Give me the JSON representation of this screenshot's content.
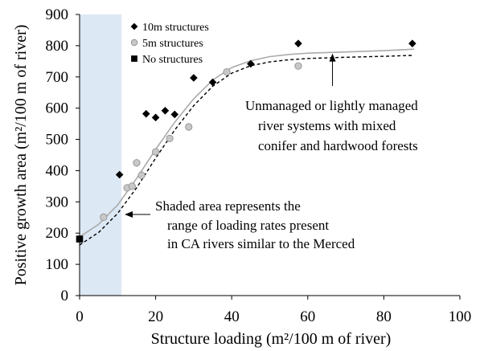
{
  "chart_data": {
    "type": "scatter",
    "xlabel": "Structure loading (m²/100 m of river)",
    "ylabel": "Positive growth area (m²/100 m of river)",
    "xlim": [
      0,
      100
    ],
    "ylim": [
      0,
      900
    ],
    "xticks": [
      "0",
      "20",
      "40",
      "60",
      "80",
      "100"
    ],
    "yticks": [
      "0",
      "100",
      "200",
      "300",
      "400",
      "500",
      "600",
      "700",
      "800",
      "900"
    ],
    "shaded_region": {
      "x": [
        0,
        11
      ],
      "color": "#dde8f5"
    },
    "legend_position": "top-left",
    "series": [
      {
        "name": "10m structures",
        "marker": "diamond",
        "color": "#000000",
        "points": [
          [
            10.5,
            387
          ],
          [
            17.5,
            582
          ],
          [
            20,
            570
          ],
          [
            22.5,
            592
          ],
          [
            25,
            580
          ],
          [
            30,
            697
          ],
          [
            35,
            683
          ],
          [
            45,
            742
          ],
          [
            57.5,
            807
          ],
          [
            87.5,
            807
          ]
        ]
      },
      {
        "name": "5m structures",
        "marker": "circle",
        "color": "#c8c8c8",
        "points": [
          [
            6.3,
            251
          ],
          [
            12.5,
            345
          ],
          [
            13.8,
            350
          ],
          [
            15,
            425
          ],
          [
            16.3,
            385
          ],
          [
            20,
            460
          ],
          [
            23.7,
            503
          ],
          [
            28.7,
            540
          ],
          [
            38.7,
            716
          ],
          [
            57.5,
            735
          ]
        ]
      },
      {
        "name": "No structures",
        "marker": "square",
        "color": "#000000",
        "points": [
          [
            0,
            181
          ]
        ]
      }
    ],
    "fit_lines": [
      {
        "style": "solid",
        "color": "#aaaaaa",
        "points": [
          [
            0,
            188
          ],
          [
            5,
            228
          ],
          [
            10,
            290
          ],
          [
            15,
            375
          ],
          [
            20,
            468
          ],
          [
            25,
            555
          ],
          [
            30,
            630
          ],
          [
            35,
            690
          ],
          [
            40,
            730
          ],
          [
            45,
            752
          ],
          [
            50,
            765
          ],
          [
            55,
            772
          ],
          [
            60,
            776
          ],
          [
            70,
            780
          ],
          [
            80,
            784
          ],
          [
            88,
            789
          ]
        ]
      },
      {
        "style": "dashed",
        "color": "#000000",
        "points": [
          [
            0,
            162
          ],
          [
            5,
            202
          ],
          [
            10,
            263
          ],
          [
            15,
            345
          ],
          [
            20,
            440
          ],
          [
            25,
            530
          ],
          [
            30,
            608
          ],
          [
            35,
            670
          ],
          [
            40,
            712
          ],
          [
            45,
            736
          ],
          [
            50,
            748
          ],
          [
            55,
            755
          ],
          [
            60,
            759
          ],
          [
            70,
            763
          ],
          [
            80,
            766
          ],
          [
            88,
            769
          ]
        ]
      }
    ],
    "annotations": [
      {
        "lines": [
          "Unmanaged or lightly managed",
          "river systems with mixed",
          "conifer and hardwood forests"
        ],
        "arrow_to": [
          66.5,
          775
        ]
      },
      {
        "lines": [
          "Shaded area represents the",
          "range of loading rates present",
          "in CA rivers similar to the Merced"
        ],
        "arrow_to": [
          11,
          360
        ]
      }
    ]
  }
}
